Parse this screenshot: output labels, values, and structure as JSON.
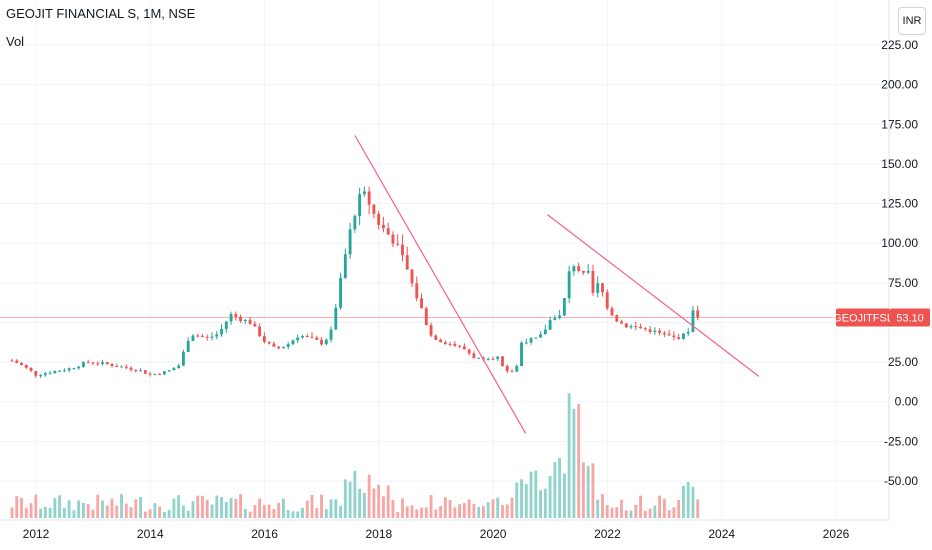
{
  "header": {
    "title": "GEOJIT FINANCIAL S, 1M, NSE",
    "volume_label": "Vol",
    "currency": "INR"
  },
  "price_tag": {
    "symbol": "GEOJITFSL",
    "price": "53.10"
  },
  "chart_data": {
    "type": "candlestick",
    "title": "GEOJIT FINANCIAL S, 1M, NSE",
    "y_ticks": [
      "225.00",
      "200.00",
      "175.00",
      "150.00",
      "125.00",
      "100.00",
      "75.00",
      "50.00",
      "25.00",
      "0.00",
      "-25.00",
      "-50.00"
    ],
    "y_tick_values": [
      225,
      200,
      175,
      150,
      125,
      100,
      75,
      50,
      25,
      0,
      -25,
      -50
    ],
    "ylim": [
      -75,
      235
    ],
    "x_ticks": [
      "2012",
      "2014",
      "2016",
      "2018",
      "2020",
      "2022",
      "2024",
      "2026"
    ],
    "x_tick_values": [
      2012,
      2014,
      2016,
      2018,
      2020,
      2022,
      2024,
      2026
    ],
    "xlim": [
      2011.58,
      2027.14
    ],
    "last_price": 53.1,
    "colors": {
      "up": "#26a69a",
      "down": "#ef5350",
      "up_vol": "#8fd3cb",
      "down_vol": "#f6a7a5",
      "trendline": "#f06292"
    },
    "trendlines": [
      {
        "x": [
          2017.58,
          2020.57
        ],
        "y": [
          168,
          -20
        ]
      },
      {
        "x": [
          2020.95,
          2024.65
        ],
        "y": [
          118,
          16
        ]
      }
    ],
    "monthly_close_keyframes": [
      [
        2011.58,
        26
      ],
      [
        2011.75,
        23
      ],
      [
        2012.0,
        17
      ],
      [
        2012.3,
        19
      ],
      [
        2012.6,
        21
      ],
      [
        2012.9,
        25
      ],
      [
        2013.2,
        24
      ],
      [
        2013.5,
        22
      ],
      [
        2013.8,
        20
      ],
      [
        2014.0,
        17
      ],
      [
        2014.3,
        19
      ],
      [
        2014.5,
        23
      ],
      [
        2014.7,
        43
      ],
      [
        2015.0,
        40
      ],
      [
        2015.2,
        43
      ],
      [
        2015.4,
        55
      ],
      [
        2015.6,
        52
      ],
      [
        2015.75,
        50
      ],
      [
        2016.0,
        38
      ],
      [
        2016.2,
        33
      ],
      [
        2016.4,
        36
      ],
      [
        2016.6,
        42
      ],
      [
        2016.8,
        40
      ],
      [
        2017.0,
        37
      ],
      [
        2017.15,
        42
      ],
      [
        2017.3,
        70
      ],
      [
        2017.45,
        100
      ],
      [
        2017.58,
        120
      ],
      [
        2017.7,
        131
      ],
      [
        2017.8,
        128
      ],
      [
        2017.95,
        115
      ],
      [
        2018.1,
        108
      ],
      [
        2018.25,
        102
      ],
      [
        2018.45,
        88
      ],
      [
        2018.6,
        72
      ],
      [
        2018.75,
        58
      ],
      [
        2018.9,
        42
      ],
      [
        2019.1,
        38
      ],
      [
        2019.3,
        36
      ],
      [
        2019.5,
        33
      ],
      [
        2019.7,
        27
      ],
      [
        2019.9,
        28
      ],
      [
        2020.1,
        28
      ],
      [
        2020.2,
        18
      ],
      [
        2020.4,
        20
      ],
      [
        2020.5,
        38
      ],
      [
        2020.8,
        40
      ],
      [
        2020.95,
        48
      ],
      [
        2021.05,
        55
      ],
      [
        2021.15,
        52
      ],
      [
        2021.25,
        65
      ],
      [
        2021.35,
        85
      ],
      [
        2021.45,
        88
      ],
      [
        2021.55,
        78
      ],
      [
        2021.65,
        82
      ],
      [
        2021.75,
        68
      ],
      [
        2021.85,
        75
      ],
      [
        2022.0,
        60
      ],
      [
        2022.15,
        52
      ],
      [
        2022.3,
        48
      ],
      [
        2022.5,
        47
      ],
      [
        2022.75,
        45
      ],
      [
        2023.0,
        42
      ],
      [
        2023.2,
        40
      ],
      [
        2023.4,
        43
      ],
      [
        2023.5,
        58
      ],
      [
        2023.58,
        53.1
      ]
    ],
    "volume_scale": [
      -63,
      100
    ],
    "volume_note": "volume bars rendered in bottom band"
  }
}
